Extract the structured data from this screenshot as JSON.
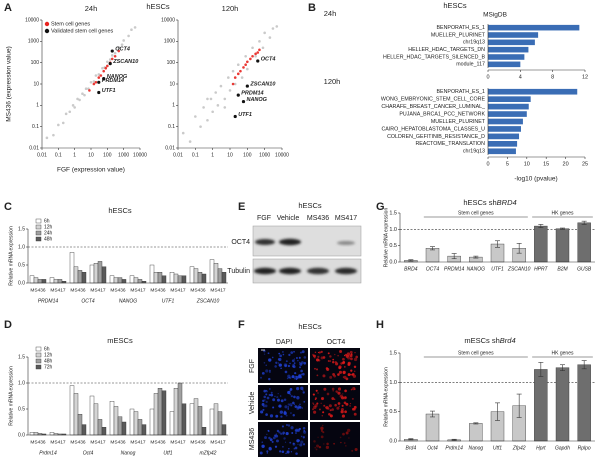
{
  "panels": [
    "A",
    "B",
    "C",
    "D",
    "E",
    "F",
    "G",
    "H"
  ],
  "chart_data": [
    {
      "type": "scatter",
      "suptitle": "hESCs",
      "title": "24h",
      "xlabel": "FGF (expression value)",
      "ylabel": "MS436 (expression value)",
      "xscale": "log",
      "yscale": "log",
      "xlim": [
        0.01,
        10000
      ],
      "ylim": [
        0.01,
        10000
      ],
      "xticks": [
        0.01,
        0.1,
        1,
        10,
        100,
        1000,
        10000
      ],
      "yticks": [
        0.01,
        0.1,
        1,
        10,
        100,
        1000,
        10000
      ],
      "legend": "upper left",
      "series": [
        {
          "color": "#c4c4c4",
          "x": [
            0.02,
            0.05,
            0.1,
            0.2,
            0.3,
            0.5,
            0.8,
            1,
            1.5,
            2,
            3,
            4,
            5,
            7,
            10,
            15,
            20,
            30,
            50,
            70,
            100,
            150,
            200,
            300,
            500,
            800,
            1000,
            2000,
            3000,
            5000
          ],
          "y": [
            0.03,
            0.04,
            0.12,
            0.15,
            0.4,
            0.5,
            1,
            0.8,
            2,
            1.8,
            3.5,
            3,
            6,
            6,
            12,
            13,
            25,
            28,
            55,
            60,
            110,
            140,
            220,
            280,
            520,
            700,
            1100,
            1800,
            3500,
            4500
          ]
        },
        {
          "name": "Stem cell genes",
          "color": "#e8231f",
          "x": [
            8,
            15,
            20,
            30,
            40,
            60,
            80,
            100,
            150,
            200,
            300,
            500
          ],
          "y": [
            5,
            10,
            12,
            20,
            25,
            40,
            55,
            70,
            100,
            150,
            200,
            350
          ]
        },
        {
          "name": "Validated stem cell genes",
          "color": "#111111",
          "x": [
            200,
            150,
            30,
            60,
            30
          ],
          "y": [
            350,
            90,
            12,
            18,
            4
          ],
          "labels": [
            "OCT4",
            "ZSCAN10",
            "PRDM14",
            "NANOG",
            "UTF1"
          ]
        }
      ]
    },
    {
      "type": "scatter",
      "title": "120h",
      "xscale": "log",
      "yscale": "log",
      "xlim": [
        0.01,
        10000
      ],
      "ylim": [
        0.01,
        10000
      ],
      "xticks": [
        0.01,
        0.1,
        1,
        10,
        100,
        1000,
        10000
      ],
      "yticks": [
        0.01,
        0.1,
        1,
        10,
        100,
        1000,
        10000
      ],
      "series": [
        {
          "color": "#c4c4c4",
          "x": [
            0.02,
            0.05,
            0.1,
            0.2,
            0.3,
            0.5,
            0.8,
            1,
            1.5,
            2,
            3,
            5,
            8,
            10,
            15,
            20,
            30,
            50,
            80,
            100,
            200,
            300,
            500,
            800,
            1000,
            2000,
            3000,
            5000,
            0.5,
            5
          ],
          "y": [
            0.05,
            0.02,
            0.3,
            0.1,
            0.8,
            0.2,
            2,
            0.5,
            4,
            1,
            8,
            2,
            20,
            5,
            40,
            10,
            80,
            20,
            200,
            50,
            500,
            200,
            1000,
            500,
            2500,
            1500,
            4000,
            5000,
            2,
            0.8
          ]
        },
        {
          "color": "#e8231f",
          "x": [
            15,
            20,
            30,
            40,
            60,
            80,
            100,
            150,
            200,
            300,
            400,
            500
          ],
          "y": [
            10,
            20,
            30,
            40,
            60,
            80,
            110,
            150,
            200,
            260,
            300,
            400
          ]
        },
        {
          "color": "#111111",
          "x": [
            400,
            100,
            30,
            60,
            20
          ],
          "y": [
            120,
            8,
            3,
            1.5,
            0.3
          ],
          "labels": [
            "OCT4",
            "ZSCAN10",
            "PRDM14",
            "NANOG",
            "UTF1"
          ]
        }
      ]
    },
    {
      "type": "barh",
      "suptitle": "hESCs",
      "subtitle": "MSigDB",
      "title": "24h",
      "categories": [
        "BENPORATH_ES_1",
        "MUELLER_PLURINET",
        "chr19q13",
        "HELLER_HDAC_TARGETS_DN",
        "HELLER_HDAC_TARGETS_SILENCED_B",
        "module_117"
      ],
      "values": [
        11.3,
        6.2,
        5.8,
        5.0,
        4.5,
        4.0
      ],
      "color": "#3a6db5",
      "xlim": [
        0,
        12
      ],
      "xticks": [
        0,
        4,
        8,
        12
      ]
    },
    {
      "type": "barh",
      "title": "120h",
      "xlabel": "-log10 (pvalue)",
      "categories": [
        "BENPORATH_ES_1",
        "WONG_EMBRYONIC_STEM_CELL_CORE",
        "CHARAFE_BREAST_CANCER_LUMINAL_",
        "PUJANA_BRCA1_PCC_NETWORK",
        "MUELLER_PLURINET",
        "CAIRO_HEPATOBLASTOMA_CLASSES_U",
        "COLDREN_GEFITINIB_RESISTANCE_D",
        "REACTOME_TRANSLATION",
        "chr19q13"
      ],
      "values": [
        23,
        11,
        10.5,
        10,
        9,
        8.5,
        8,
        7.5,
        7.2
      ],
      "color": "#3a6db5",
      "xlim": [
        0,
        25
      ],
      "xticks": [
        0,
        5,
        10,
        15,
        20,
        25
      ]
    },
    {
      "type": "grouped_bar",
      "title": "hESCs",
      "ylabel": "Relative mRNA expression",
      "categories": [
        "MS436",
        "MS417",
        "MS436",
        "MS417",
        "MS436",
        "MS417",
        "MS436",
        "MS417",
        "MS436",
        "MS417"
      ],
      "groups": [
        "PRDM14",
        "OCT4",
        "NANOG",
        "UTF1",
        "ZSCAN10"
      ],
      "series": [
        {
          "name": "6h",
          "color": "#ffffff",
          "values": [
            0.2,
            0.15,
            0.85,
            0.5,
            0.2,
            0.2,
            0.5,
            0.3,
            0.45,
            0.65
          ]
        },
        {
          "name": "12h",
          "color": "#d4d4d4",
          "values": [
            0.15,
            0.1,
            0.45,
            0.55,
            0.15,
            0.15,
            0.3,
            0.25,
            0.4,
            0.55
          ]
        },
        {
          "name": "24h",
          "color": "#a0a0a0",
          "values": [
            0.1,
            0.1,
            0.35,
            0.6,
            0.15,
            0.1,
            0.3,
            0.2,
            0.3,
            0.4
          ]
        },
        {
          "name": "48h",
          "color": "#5a5a5a",
          "values": [
            0.1,
            0.05,
            0.3,
            0.45,
            0.1,
            0.05,
            0.2,
            0.2,
            0.25,
            0.3
          ]
        }
      ],
      "ylim": [
        0,
        1.5
      ],
      "yticks": [
        {
          "value": 0,
          "label": "0.0"
        },
        {
          "value": 0.5,
          "label": "0.5"
        },
        {
          "value": 1,
          "label": "1.0"
        },
        {
          "value": 1.5,
          "label": "1.5"
        }
      ],
      "reference_line": 1,
      "legend": "upper left"
    },
    {
      "type": "grouped_bar",
      "title": "mESCs",
      "ylabel": "Relative mRNA expression",
      "categories": [
        "MS436",
        "MS417",
        "MS436",
        "MS417",
        "MS436",
        "MS417",
        "MS436",
        "MS417",
        "MS436",
        "MS417"
      ],
      "groups": [
        "Prdm14",
        "Oct4",
        "Nanog",
        "Utf1",
        "mZfp42"
      ],
      "series": [
        {
          "name": "6h",
          "color": "#ffffff",
          "values": [
            0.05,
            0.05,
            0.95,
            0.75,
            0.65,
            0.5,
            0.5,
            0.45,
            0.6,
            0.5
          ]
        },
        {
          "name": "12h",
          "color": "#d4d4d4",
          "values": [
            0.05,
            0.03,
            0.8,
            0.6,
            0.55,
            0.45,
            0.8,
            0.9,
            0.7,
            0.6
          ]
        },
        {
          "name": "48h",
          "color": "#a0a0a0",
          "values": [
            0.03,
            0.02,
            0.4,
            0.3,
            0.35,
            0.3,
            0.9,
            1.0,
            0.55,
            0.45
          ]
        },
        {
          "name": "72h",
          "color": "#5a5a5a",
          "values": [
            0.02,
            0.02,
            0.2,
            0.15,
            0.25,
            0.2,
            0.85,
            0.6,
            0.15,
            0.2
          ]
        }
      ],
      "ylim": [
        0,
        1.5
      ],
      "yticks": [
        {
          "value": 0,
          "label": "0.0"
        },
        {
          "value": 0.5,
          "label": "0.5"
        },
        {
          "value": 1,
          "label": "1.0"
        },
        {
          "value": 1.5,
          "label": "1.5"
        }
      ],
      "reference_line": 1,
      "legend": "upper left"
    },
    {
      "type": "bar",
      "title": [
        "hESCs sh",
        "BRD4"
      ],
      "ylabel": "Relative mRNA expression",
      "categories": [
        "BRD4",
        "OCT4",
        "PRDM14",
        "NANOG",
        "UTF1",
        "ZSCAN10",
        "HPRT",
        "B2M",
        "GUSB"
      ],
      "values": [
        0.05,
        0.42,
        0.18,
        0.15,
        0.55,
        0.42,
        1.1,
        1.02,
        1.2
      ],
      "errors": [
        0.02,
        0.05,
        0.08,
        0.03,
        0.1,
        0.15,
        0.05,
        0.02,
        0.05
      ],
      "colors": [
        "#c8c8c8",
        "#c8c8c8",
        "#c8c8c8",
        "#c8c8c8",
        "#c8c8c8",
        "#c8c8c8",
        "#6e6e6e",
        "#6e6e6e",
        "#6e6e6e"
      ],
      "ylim": [
        0,
        1.5
      ],
      "yticks": [
        {
          "value": 0,
          "label": "0.0"
        },
        {
          "value": 0.5,
          "label": "0.5"
        },
        {
          "value": 1,
          "label": "1.0"
        },
        {
          "value": 1.5,
          "label": "1.5"
        }
      ],
      "reference_line": 1,
      "brackets": [
        {
          "label": "Stem cell genes",
          "span": [
            1,
            5
          ]
        },
        {
          "label": "HK genes",
          "span": [
            6,
            8
          ]
        }
      ]
    },
    {
      "type": "bar",
      "title": [
        "mESCs sh",
        "Brd4"
      ],
      "ylabel": "Relative mRNA expression",
      "categories": [
        "Brd4",
        "Oct4",
        "Prdm14",
        "Nanog",
        "Utf1",
        "Zfp42",
        "Hprt",
        "Gapdh",
        "Rplpo"
      ],
      "values": [
        0.03,
        0.46,
        0.02,
        0.3,
        0.5,
        0.6,
        1.22,
        1.25,
        1.3
      ],
      "errors": [
        0.01,
        0.05,
        0.01,
        0.01,
        0.15,
        0.2,
        0.12,
        0.05,
        0.07
      ],
      "colors": [
        "#c8c8c8",
        "#c8c8c8",
        "#c8c8c8",
        "#c8c8c8",
        "#c8c8c8",
        "#c8c8c8",
        "#6e6e6e",
        "#6e6e6e",
        "#6e6e6e"
      ],
      "ylim": [
        0,
        1.5
      ],
      "yticks": [
        {
          "value": 0,
          "label": "0.0"
        },
        {
          "value": 0.5,
          "label": "0.5"
        },
        {
          "value": 1,
          "label": "1.0"
        },
        {
          "value": 1.5,
          "label": "1.5"
        }
      ],
      "reference_line": 1,
      "brackets": [
        {
          "label": "Stem cell genes",
          "span": [
            1,
            5
          ]
        },
        {
          "label": "HK genes",
          "span": [
            6,
            8
          ]
        }
      ]
    }
  ],
  "blot": {
    "title": "hESCs",
    "lanes": [
      "FGF",
      "Vehicle",
      "MS436",
      "MS417"
    ],
    "rows": [
      "OCT4",
      "Tubulin"
    ]
  },
  "microscopy": {
    "title": "hESCs",
    "columns": [
      "DAPI",
      "OCT4"
    ],
    "rows": [
      "FGF",
      "Vehicle",
      "MS436"
    ]
  }
}
